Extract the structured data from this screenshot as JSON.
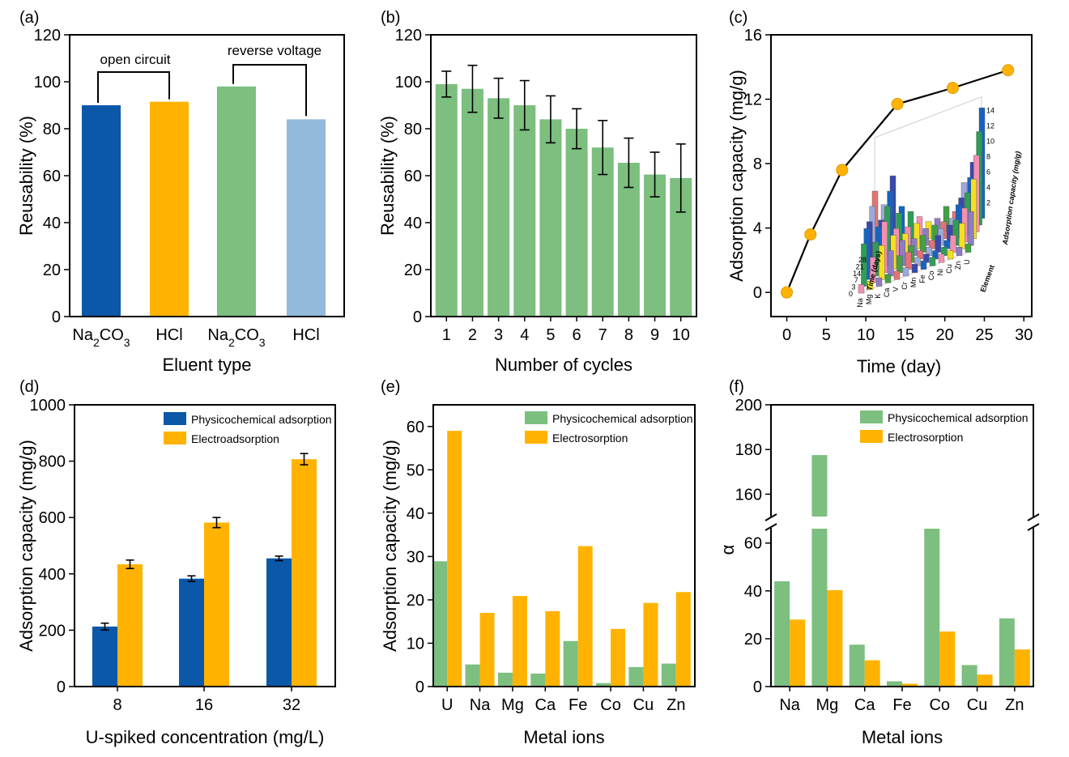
{
  "colors": {
    "dark_blue": "#0b57a8",
    "orange": "#ffb300",
    "green": "#7cbf7f",
    "light_blue": "#93b9dc",
    "black": "#000000"
  },
  "chart_data": [
    {
      "id": "a",
      "panel_label": "(a)",
      "type": "bar",
      "categories": [
        "Na2CO3",
        "HCl",
        "Na2CO3",
        "HCl"
      ],
      "values": [
        90,
        91.5,
        98,
        84
      ],
      "bar_colors": [
        "#0b57a8",
        "#ffb300",
        "#7cbf7f",
        "#93b9dc"
      ],
      "xlabel": "Eluent type",
      "ylabel": "Reusability (%)",
      "ylim": [
        0,
        120
      ],
      "yticks": [
        0,
        20,
        40,
        60,
        80,
        100,
        120
      ],
      "annotations": [
        "open circuit",
        "reverse voltage"
      ]
    },
    {
      "id": "b",
      "panel_label": "(b)",
      "type": "bar",
      "categories": [
        "1",
        "2",
        "3",
        "4",
        "5",
        "6",
        "7",
        "8",
        "9",
        "10"
      ],
      "values": [
        99,
        97,
        93,
        90,
        84,
        80,
        72,
        65.5,
        60.5,
        59
      ],
      "errors": [
        5.5,
        10,
        8.5,
        10.5,
        10,
        8.5,
        11.5,
        10.5,
        9.5,
        14.5
      ],
      "xlabel": "Number of cycles",
      "ylabel": "Reusability (%)",
      "ylim": [
        0,
        120
      ],
      "yticks": [
        0,
        20,
        40,
        60,
        80,
        100,
        120
      ]
    },
    {
      "id": "c",
      "panel_label": "(c)",
      "type": "line",
      "x": [
        0,
        3,
        7,
        14,
        21,
        28
      ],
      "y": [
        0,
        3.6,
        7.6,
        11.7,
        12.7,
        13.8
      ],
      "xlabel": "Time (day)",
      "ylabel": "Adsorption capacity (mg/g)",
      "xlim": [
        -2,
        31
      ],
      "ylim": [
        -1.5,
        16
      ],
      "xticks": [
        0,
        5,
        10,
        15,
        20,
        25,
        30
      ],
      "yticks": [
        0,
        4,
        8,
        12,
        16
      ],
      "inset": {
        "type": "bar3d",
        "zlabel": "Adsorption capacity (mg/g)",
        "zticks": [
          "2",
          "4",
          "6",
          "8",
          "10",
          "12",
          "14"
        ],
        "time_label": "Time (days)",
        "time_ticks": [
          "0",
          "3",
          "7",
          "14",
          "21",
          "28"
        ],
        "element_label": "Element",
        "elements": [
          "Na",
          "Mg",
          "K",
          "Ca",
          "V",
          "Cr",
          "Mn",
          "Fe",
          "Co",
          "Ni",
          "Cu",
          "Zn",
          "U"
        ]
      }
    },
    {
      "id": "d",
      "panel_label": "(d)",
      "type": "bar",
      "categories": [
        "8",
        "16",
        "32"
      ],
      "series": [
        {
          "name": "Physicochemical adsorption",
          "color": "#0b57a8",
          "values": [
            213,
            383,
            455
          ],
          "errors": [
            12,
            10,
            8
          ]
        },
        {
          "name": "Electroadsorption",
          "color": "#ffb300",
          "values": [
            434,
            582,
            807
          ],
          "errors": [
            15,
            18,
            20
          ]
        }
      ],
      "xlabel": "U-spiked concentration (mg/L)",
      "ylabel": "Adsorption capacity (mg/g)",
      "ylim": [
        0,
        1000
      ],
      "yticks": [
        0,
        200,
        400,
        600,
        800,
        1000
      ],
      "legend": "top-right"
    },
    {
      "id": "e",
      "panel_label": "(e)",
      "type": "bar",
      "categories": [
        "U",
        "Na",
        "Mg",
        "Ca",
        "Fe",
        "Co",
        "Cu",
        "Zn"
      ],
      "series": [
        {
          "name": "Physicochemical adsorption",
          "color": "#7cbf7f",
          "values": [
            28.9,
            5.1,
            3.2,
            3.0,
            10.5,
            0.8,
            4.5,
            5.3
          ]
        },
        {
          "name": "Electrosorption",
          "color": "#ffb300",
          "values": [
            59,
            17,
            20.9,
            17.4,
            32.4,
            13.3,
            19.3,
            21.8
          ]
        }
      ],
      "xlabel": "Metal ions",
      "ylabel": "Adsorption capacity (mg/g)",
      "ylim": [
        0,
        65
      ],
      "yticks": [
        0,
        10,
        20,
        30,
        40,
        50,
        60
      ],
      "legend": "top-right"
    },
    {
      "id": "f",
      "panel_label": "(f)",
      "type": "bar",
      "categories": [
        "Na",
        "Mg",
        "Ca",
        "Fe",
        "Co",
        "Cu",
        "Zn"
      ],
      "series": [
        {
          "name": "Physicochemical adsorption",
          "color": "#7cbf7f",
          "values": [
            44,
            177.5,
            17.5,
            2.2,
            66,
            9,
            28.5
          ]
        },
        {
          "name": "Electrosorption",
          "color": "#ffb300",
          "values": [
            28,
            40.3,
            11,
            1.2,
            23,
            5,
            15.5
          ]
        }
      ],
      "xlabel": "Metal ions",
      "ylabel": "α",
      "ylim": [
        0,
        200
      ],
      "axis_break": {
        "lower": [
          0,
          66
        ],
        "upper": [
          150,
          200
        ]
      },
      "yticks": [
        0,
        20,
        40,
        60,
        160,
        180,
        200
      ],
      "legend": "top-right"
    }
  ]
}
